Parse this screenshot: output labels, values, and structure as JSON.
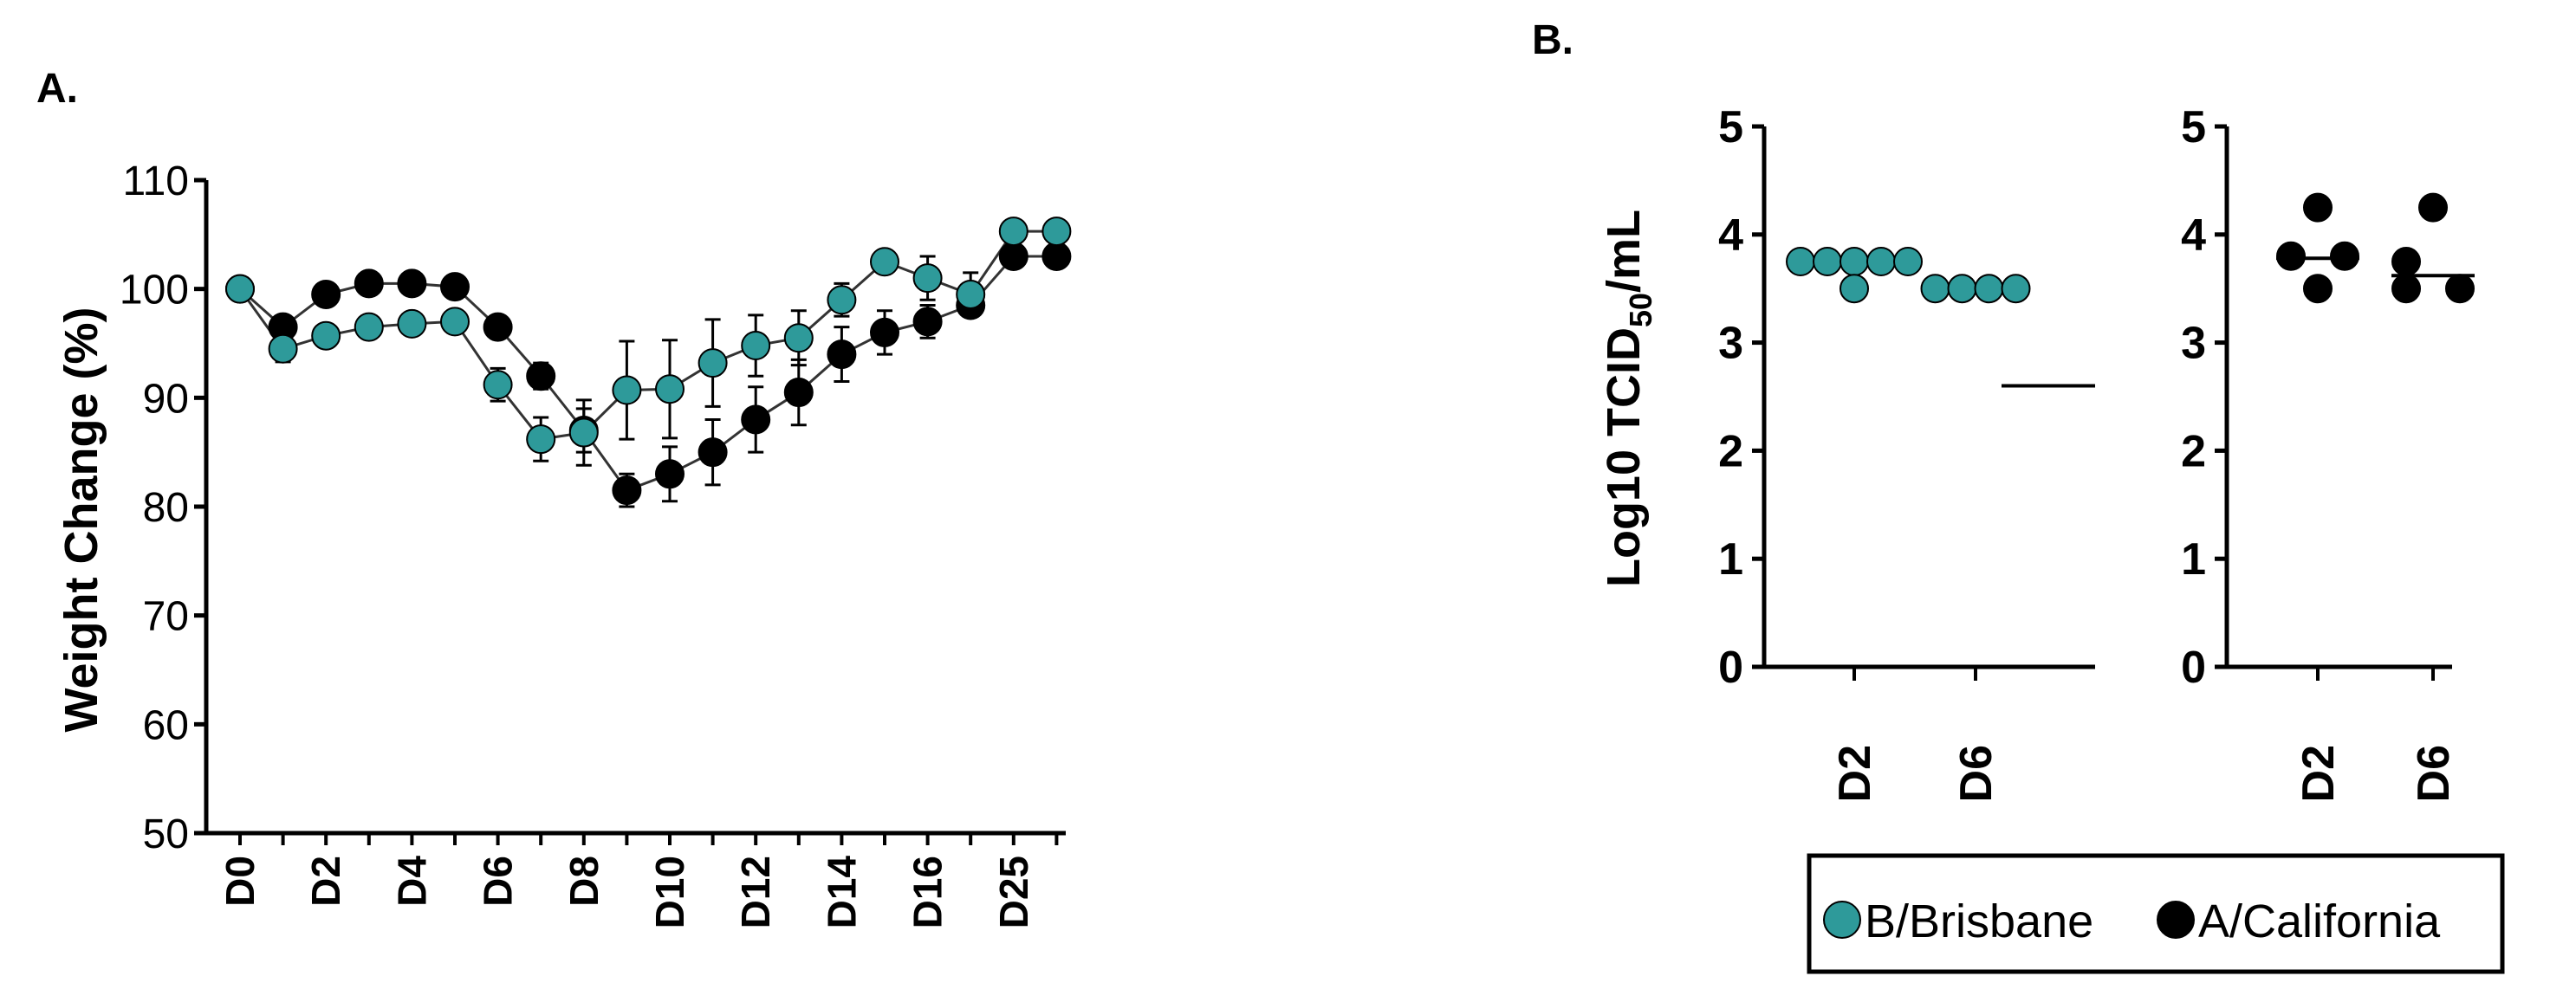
{
  "colors": {
    "brisbane": "#2e9a9a",
    "california": "#000000",
    "axis": "#000000",
    "connector": "#333333"
  },
  "chart_data": [
    {
      "panel": "A.",
      "type": "line",
      "title": "",
      "xlabel": "",
      "ylabel": "Weight Change (%)",
      "ylim": [
        50,
        110
      ],
      "yticks": [
        50,
        60,
        70,
        80,
        90,
        100,
        110
      ],
      "x": [
        0,
        1,
        2,
        3,
        4,
        5,
        6,
        7,
        8,
        9,
        10,
        11,
        12,
        13,
        14,
        15,
        16,
        17,
        18,
        19
      ],
      "xticks": [
        {
          "x": 0,
          "label": "D0"
        },
        {
          "x": 2,
          "label": "D2"
        },
        {
          "x": 4,
          "label": "D4"
        },
        {
          "x": 6,
          "label": "D6"
        },
        {
          "x": 8,
          "label": "D8"
        },
        {
          "x": 10,
          "label": "D10"
        },
        {
          "x": 12,
          "label": "D12"
        },
        {
          "x": 14,
          "label": "D14"
        },
        {
          "x": 16,
          "label": "D16"
        },
        {
          "x": 18,
          "label": "D25"
        }
      ],
      "series": [
        {
          "name": "A/California",
          "color_key": "california",
          "values": [
            100,
            96.5,
            99.5,
            100.5,
            100.5,
            100.2,
            96.5,
            92,
            87,
            81.5,
            83,
            85,
            88,
            90.5,
            94,
            96,
            97,
            98.5,
            103,
            103
          ],
          "errors": [
            0.5,
            1,
            0.8,
            0.8,
            0.8,
            0.8,
            1,
            1.2,
            2,
            1.5,
            2.5,
            3,
            3,
            3,
            2.5,
            2,
            1.5,
            1,
            0.8,
            0.8
          ]
        },
        {
          "name": "B/Brisbane",
          "color_key": "brisbane",
          "values": [
            100,
            94.5,
            95.7,
            96.5,
            96.8,
            97,
            91.2,
            86.2,
            86.8,
            90.7,
            90.8,
            93.2,
            94.8,
            95.5,
            99,
            102.5,
            101,
            99.5,
            105.3,
            105.3
          ],
          "errors": [
            0.5,
            1.2,
            1,
            0.8,
            0.8,
            0.8,
            1.5,
            2,
            3,
            4.5,
            4.5,
            4,
            2.8,
            2.5,
            1.5,
            1,
            2,
            2,
            1,
            1
          ]
        }
      ]
    },
    {
      "panel": "B.",
      "type": "scatter",
      "ylabel_main": "Log10 TCID",
      "ylabel_sub": "50",
      "ylabel_tail": "/mL",
      "ylim": [
        0,
        5
      ],
      "yticks": [
        0,
        1,
        2,
        3,
        4,
        5
      ],
      "subpanels": [
        {
          "series": "B/Brisbane",
          "color_key": "brisbane",
          "categories": [
            "D2",
            "D6"
          ],
          "points": [
            {
              "cat": 0,
              "y": 3.75,
              "offset": -2
            },
            {
              "cat": 0,
              "y": 3.75,
              "offset": -1
            },
            {
              "cat": 0,
              "y": 3.75,
              "offset": 0
            },
            {
              "cat": 0,
              "y": 3.75,
              "offset": 1
            },
            {
              "cat": 0,
              "y": 3.75,
              "offset": 2
            },
            {
              "cat": 0,
              "y": 3.5,
              "offset": 0
            },
            {
              "cat": 1,
              "y": 3.5,
              "offset": -1.5
            },
            {
              "cat": 1,
              "y": 3.5,
              "offset": -0.5
            },
            {
              "cat": 1,
              "y": 3.5,
              "offset": 0.5
            },
            {
              "cat": 1,
              "y": 3.5,
              "offset": 1.5
            }
          ],
          "medians": [
            {
              "cat": 0,
              "y": 3.75
            },
            {
              "cat": 1,
              "y": 3.5
            }
          ],
          "extra_line_y": 2.6
        },
        {
          "series": "A/California",
          "color_key": "california",
          "categories": [
            "D2",
            "D6"
          ],
          "points": [
            {
              "cat": 0,
              "y": 4.25,
              "offset": 0
            },
            {
              "cat": 0,
              "y": 3.8,
              "offset": -1
            },
            {
              "cat": 0,
              "y": 3.8,
              "offset": 1
            },
            {
              "cat": 0,
              "y": 3.5,
              "offset": 0
            },
            {
              "cat": 1,
              "y": 4.25,
              "offset": 0
            },
            {
              "cat": 1,
              "y": 3.75,
              "offset": -1
            },
            {
              "cat": 1,
              "y": 3.5,
              "offset": -1
            },
            {
              "cat": 1,
              "y": 3.5,
              "offset": 1
            }
          ],
          "medians": [
            {
              "cat": 0,
              "y": 3.78
            },
            {
              "cat": 1,
              "y": 3.62
            }
          ]
        }
      ],
      "legend": [
        {
          "name": "B/Brisbane",
          "color_key": "brisbane"
        },
        {
          "name": "A/California",
          "color_key": "california"
        }
      ]
    }
  ]
}
